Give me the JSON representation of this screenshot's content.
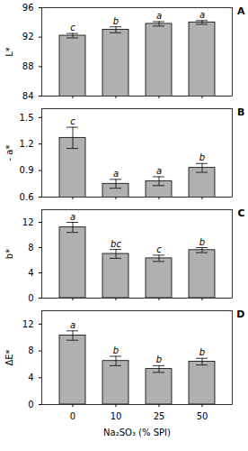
{
  "chart_data": [
    {
      "type": "bar",
      "title": "A",
      "ylabel": "L*",
      "categories": [
        "0",
        "10",
        "25",
        "50"
      ],
      "values": [
        92.2,
        93.0,
        93.8,
        94.0
      ],
      "errors": [
        0.3,
        0.4,
        0.3,
        0.25
      ],
      "letters": [
        "c",
        "b",
        "a",
        "a"
      ],
      "color": "#b0b0b0",
      "ylim": [
        84,
        96
      ],
      "yticks": [
        84,
        88,
        92,
        96
      ],
      "tick_labels": "y"
    },
    {
      "type": "bar",
      "title": "B",
      "ylabel": "- a*",
      "categories": [
        "0",
        "10",
        "25",
        "50"
      ],
      "values": [
        1.27,
        0.75,
        0.78,
        0.93
      ],
      "errors": [
        0.12,
        0.05,
        0.05,
        0.05
      ],
      "letters": [
        "c",
        "a",
        "a",
        "b"
      ],
      "color": "#b0b0b0",
      "ylim": [
        0.6,
        1.6
      ],
      "yticks": [
        0.6,
        0.9,
        1.2,
        1.5
      ],
      "tick_labels": "y"
    },
    {
      "type": "bar",
      "title": "C",
      "ylabel": "b*",
      "categories": [
        "0",
        "10",
        "25",
        "50"
      ],
      "values": [
        11.2,
        7.0,
        6.3,
        7.6
      ],
      "errors": [
        0.8,
        0.7,
        0.5,
        0.4
      ],
      "letters": [
        "a",
        "bc",
        "c",
        "b"
      ],
      "color": "#b0b0b0",
      "ylim": [
        0,
        14
      ],
      "yticks": [
        0,
        4,
        8,
        12
      ],
      "tick_labels": "y"
    },
    {
      "type": "bar",
      "title": "D",
      "ylabel": "ΔE*",
      "xlabel": "Na₂SO₃ (% SPI)",
      "categories": [
        "0",
        "10",
        "25",
        "50"
      ],
      "values": [
        10.3,
        6.5,
        5.3,
        6.4
      ],
      "errors": [
        0.7,
        0.7,
        0.5,
        0.5
      ],
      "letters": [
        "a",
        "b",
        "b",
        "b"
      ],
      "color": "#b0b0b0",
      "ylim": [
        0,
        14
      ],
      "yticks": [
        0,
        4,
        8,
        12
      ]
    }
  ]
}
